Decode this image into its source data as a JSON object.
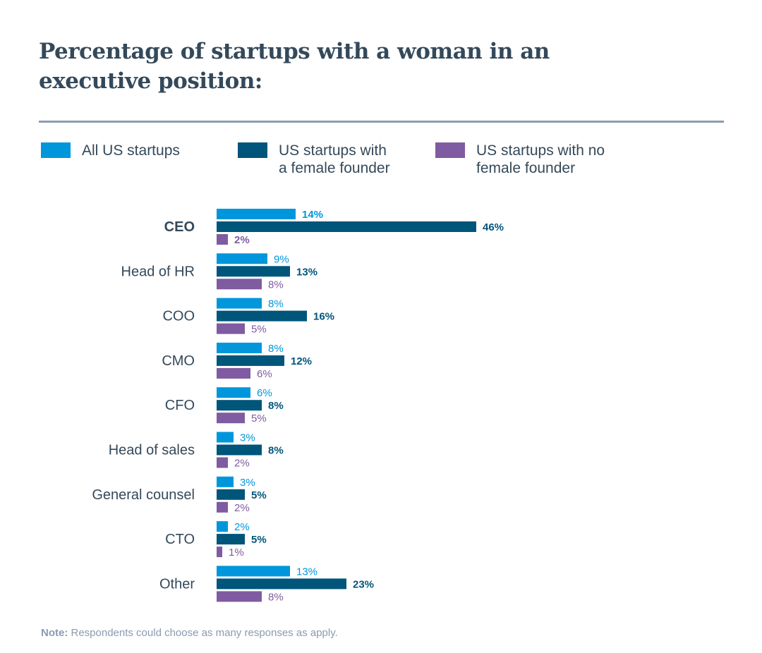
{
  "chart_data": {
    "type": "bar",
    "orientation": "horizontal",
    "title": "Percentage of startups with a woman in an executive position:",
    "categories": [
      "CEO",
      "Head of HR",
      "COO",
      "CMO",
      "CFO",
      "Head of sales",
      "General counsel",
      "CTO",
      "Other"
    ],
    "highlighted_category": "CEO",
    "series": [
      {
        "name": "All US startups",
        "color": "#0096db",
        "values": [
          14,
          9,
          8,
          8,
          6,
          3,
          3,
          2,
          13
        ]
      },
      {
        "name": "US startups with\na female founder",
        "color": "#00557a",
        "values": [
          46,
          13,
          16,
          12,
          8,
          8,
          5,
          5,
          23
        ]
      },
      {
        "name": "US startups with no\nfemale founder",
        "color": "#7f5ba1",
        "values": [
          2,
          8,
          5,
          6,
          5,
          2,
          2,
          1,
          8
        ]
      }
    ],
    "value_suffix": "%",
    "xlim": [
      0,
      100
    ],
    "grid": false,
    "legend_position": "top"
  },
  "note": {
    "label": "Note:",
    "text": " Respondents could choose as many responses as apply."
  }
}
